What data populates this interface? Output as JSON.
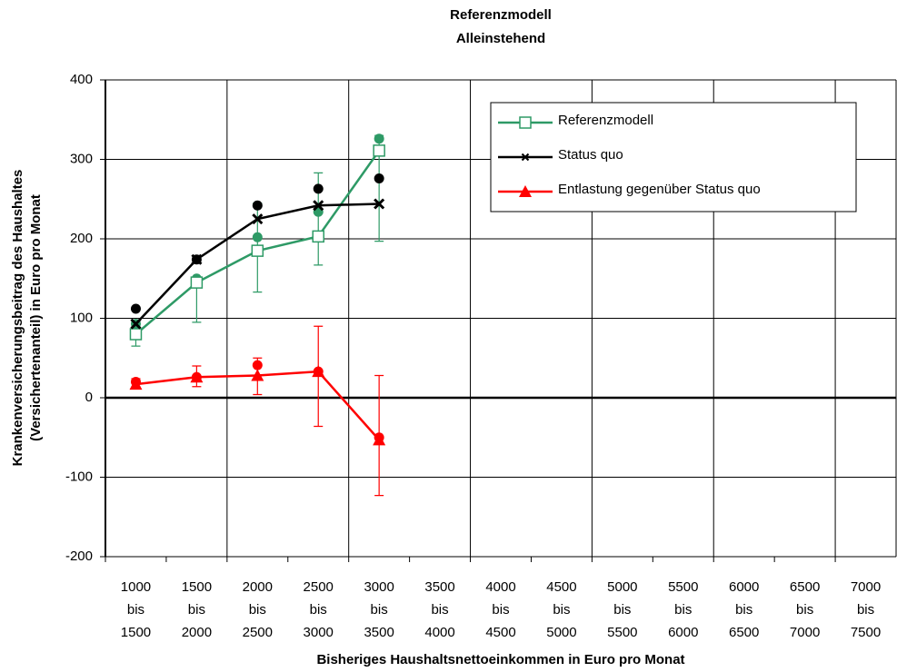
{
  "chart_data": {
    "type": "line",
    "title": [
      "Referenzmodell",
      "Alleinstehend"
    ],
    "y_label": [
      "Krankenversicherungsbeitrag des Haushaltes",
      "(Versichertenanteil) in Euro pro Monat"
    ],
    "x_label": "Bisheriges Haushaltsnettoeinkommen in Euro pro Monat",
    "categories": [
      [
        "1000",
        "bis",
        "1500"
      ],
      [
        "1500",
        "bis",
        "2000"
      ],
      [
        "2000",
        "bis",
        "2500"
      ],
      [
        "2500",
        "bis",
        "3000"
      ],
      [
        "3000",
        "bis",
        "3500"
      ],
      [
        "3500",
        "bis",
        "4000"
      ],
      [
        "4000",
        "bis",
        "4500"
      ],
      [
        "4500",
        "bis",
        "5000"
      ],
      [
        "5000",
        "bis",
        "5500"
      ],
      [
        "5500",
        "bis",
        "6000"
      ],
      [
        "6000",
        "bis",
        "6500"
      ],
      [
        "6500",
        "bis",
        "7000"
      ],
      [
        "7000",
        "bis",
        "7500"
      ]
    ],
    "ylim": [
      -200,
      400
    ],
    "yticks": [
      -200,
      -100,
      0,
      100,
      200,
      300,
      400
    ],
    "grid": true,
    "series": [
      {
        "name": "Referenzmodell",
        "color": "#2e9a66",
        "marker": "square",
        "values": [
          80,
          145,
          185,
          203,
          311,
          null,
          null,
          null,
          null,
          null,
          null,
          null,
          null
        ],
        "dots": [
          93,
          150,
          202,
          234,
          326,
          null,
          null,
          null,
          null,
          null,
          null,
          null,
          null
        ],
        "err_low": [
          65,
          95,
          133,
          167,
          197,
          null,
          null,
          null,
          null,
          null,
          null,
          null,
          null
        ],
        "err_high": [
          95,
          150,
          245,
          283,
          330,
          null,
          null,
          null,
          null,
          null,
          null,
          null,
          null
        ]
      },
      {
        "name": "Status quo",
        "color": "#000000",
        "marker": "x",
        "values": [
          93,
          174,
          225,
          242,
          244,
          null,
          null,
          null,
          null,
          null,
          null,
          null,
          null
        ],
        "dots": [
          112,
          174,
          242,
          263,
          276,
          null,
          null,
          null,
          null,
          null,
          null,
          null,
          null
        ]
      },
      {
        "name": "Entlastung gegenüber Status quo",
        "color": "#ff0000",
        "marker": "triangle",
        "values": [
          17,
          26,
          28,
          33,
          -53,
          null,
          null,
          null,
          null,
          null,
          null,
          null,
          null
        ],
        "dots": [
          20,
          26,
          41,
          33,
          -50,
          null,
          null,
          null,
          null,
          null,
          null,
          null,
          null
        ],
        "err_low": [
          14,
          14,
          4,
          -36,
          -123,
          null,
          null,
          null,
          null,
          null,
          null,
          null,
          null
        ],
        "err_high": [
          24,
          40,
          50,
          90,
          28,
          null,
          null,
          null,
          null,
          null,
          null,
          null,
          null
        ]
      }
    ]
  }
}
